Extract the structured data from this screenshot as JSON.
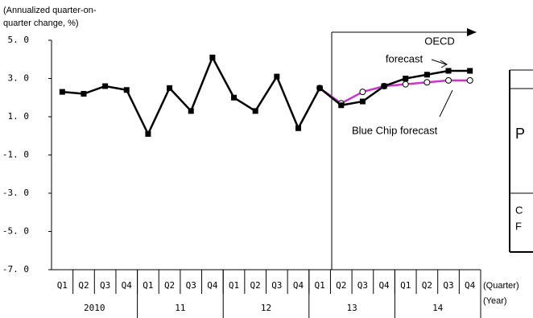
{
  "chart_data": {
    "type": "line",
    "y_axis_label": [
      "(Annualized quarter-on-",
      "quarter change, %)"
    ],
    "categories": [
      "Q1",
      "Q2",
      "Q3",
      "Q4",
      "Q1",
      "Q2",
      "Q3",
      "Q4",
      "Q1",
      "Q2",
      "Q3",
      "Q4",
      "Q1",
      "Q2",
      "Q3",
      "Q4",
      "Q1",
      "Q2",
      "Q3",
      "Q4"
    ],
    "years": [
      "2010",
      "11",
      "12",
      "13",
      "14"
    ],
    "x_axis_label": "(Quarter)",
    "year_axis_label": "(Year)",
    "ylim": [
      -7,
      5
    ],
    "yticks": [
      {
        "value": -7,
        "label": "-7. 0"
      },
      {
        "value": -5,
        "label": "-5. 0"
      },
      {
        "value": -3,
        "label": "-3. 0"
      },
      {
        "value": -1,
        "label": "-1. 0"
      },
      {
        "value": 1,
        "label": "1. 0"
      },
      {
        "value": 3,
        "label": "3. 0"
      },
      {
        "value": 5,
        "label": "5. 0"
      }
    ],
    "series": [
      {
        "name": "OECD forecast",
        "color": "#000000",
        "marker": "square",
        "values": [
          2.3,
          2.2,
          2.6,
          2.4,
          0.1,
          2.5,
          1.3,
          4.1,
          2.0,
          1.3,
          3.1,
          0.4,
          2.5,
          1.6,
          1.8,
          2.6,
          3.0,
          3.2,
          3.4,
          3.4
        ]
      },
      {
        "name": "Blue Chip forecast",
        "color": "#cc33cc",
        "marker": "circle",
        "values": [
          null,
          null,
          null,
          null,
          null,
          null,
          null,
          null,
          null,
          null,
          null,
          null,
          2.5,
          1.7,
          2.3,
          2.6,
          2.7,
          2.8,
          2.9,
          2.9
        ]
      }
    ],
    "oecd_label": [
      "OECD",
      "forecast"
    ],
    "cropped_panel_texts": [
      "P",
      "C",
      "F"
    ]
  }
}
